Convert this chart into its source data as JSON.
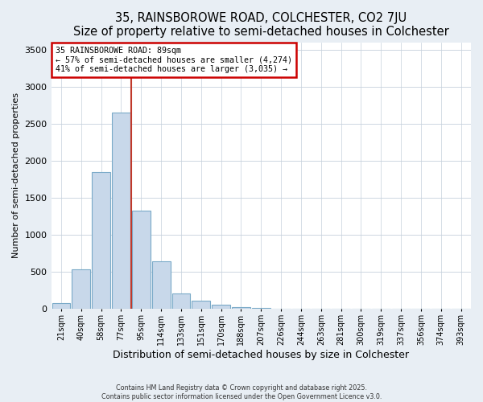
{
  "title": "35, RAINSBOROWE ROAD, COLCHESTER, CO2 7JU",
  "subtitle": "Size of property relative to semi-detached houses in Colchester",
  "xlabel": "Distribution of semi-detached houses by size in Colchester",
  "ylabel": "Number of semi-detached properties",
  "bin_labels": [
    "21sqm",
    "40sqm",
    "58sqm",
    "77sqm",
    "95sqm",
    "114sqm",
    "133sqm",
    "151sqm",
    "170sqm",
    "188sqm",
    "207sqm",
    "226sqm",
    "244sqm",
    "263sqm",
    "281sqm",
    "300sqm",
    "319sqm",
    "337sqm",
    "356sqm",
    "374sqm",
    "393sqm"
  ],
  "bar_values": [
    75,
    530,
    1850,
    2650,
    1330,
    640,
    210,
    110,
    50,
    20,
    10,
    3,
    2,
    1,
    0,
    0,
    0,
    0,
    0,
    0,
    0
  ],
  "bar_color": "#c8d8ea",
  "bar_edge_color": "#7aaac8",
  "vline_color": "#c0392b",
  "vline_x_index": 3.5,
  "annotation_title": "35 RAINSBOROWE ROAD: 89sqm",
  "annotation_line1": "← 57% of semi-detached houses are smaller (4,274)",
  "annotation_line2": "41% of semi-detached houses are larger (3,035) →",
  "annotation_box_color": "white",
  "annotation_box_edge_color": "#cc0000",
  "ylim": [
    0,
    3600
  ],
  "yticks": [
    0,
    500,
    1000,
    1500,
    2000,
    2500,
    3000,
    3500
  ],
  "footer1": "Contains HM Land Registry data © Crown copyright and database right 2025.",
  "footer2": "Contains public sector information licensed under the Open Government Licence v3.0.",
  "bg_color": "#e8eef4",
  "plot_bg_color": "#ffffff",
  "grid_color": "#c5d0dc"
}
